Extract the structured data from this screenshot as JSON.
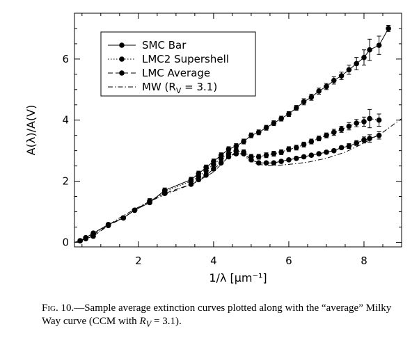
{
  "chart_data": {
    "type": "line",
    "xlabel": "1/λ [μm⁻¹]",
    "ylabel": "A(λ)/A(V)",
    "xlim": [
      0.3,
      9.0
    ],
    "ylim": [
      -0.15,
      7.5
    ],
    "xticks": [
      2,
      4,
      6,
      8
    ],
    "yticks": [
      0,
      2,
      4,
      6
    ],
    "grid": false,
    "legend_position": "top-left",
    "series": [
      {
        "name": "SMC Bar",
        "style": "solid",
        "marker": "circle",
        "x": [
          0.45,
          0.6,
          0.8,
          1.2,
          1.6,
          1.9,
          2.3,
          2.7,
          3.4,
          3.6,
          3.8,
          4.0,
          4.2,
          4.4,
          4.6,
          4.8,
          5.0,
          5.2,
          5.4,
          5.6,
          5.8,
          6.0,
          6.2,
          6.4,
          6.6,
          6.8,
          7.0,
          7.2,
          7.4,
          7.6,
          7.8,
          8.0,
          8.15,
          8.4,
          8.65
        ],
        "y": [
          0.05,
          0.15,
          0.3,
          0.58,
          0.8,
          1.05,
          1.3,
          1.7,
          2.05,
          2.25,
          2.45,
          2.65,
          2.85,
          3.05,
          3.15,
          3.3,
          3.5,
          3.6,
          3.75,
          3.9,
          4.05,
          4.2,
          4.4,
          4.6,
          4.75,
          4.95,
          5.1,
          5.3,
          5.45,
          5.65,
          5.85,
          6.05,
          6.3,
          6.45,
          7.0
        ],
        "yerr": [
          0.05,
          0.05,
          0.05,
          0.05,
          0.05,
          0.05,
          0.05,
          0.08,
          0.08,
          0.08,
          0.08,
          0.08,
          0.08,
          0.08,
          0.08,
          0.08,
          0.08,
          0.08,
          0.08,
          0.08,
          0.08,
          0.08,
          0.08,
          0.1,
          0.1,
          0.1,
          0.1,
          0.12,
          0.12,
          0.15,
          0.2,
          0.25,
          0.35,
          0.3,
          0.1
        ]
      },
      {
        "name": "LMC2 Supershell",
        "style": "dotted",
        "marker": "circle",
        "x": [
          0.45,
          0.6,
          0.8,
          1.2,
          1.6,
          1.9,
          2.3,
          2.7,
          3.4,
          3.6,
          3.8,
          4.0,
          4.2,
          4.4,
          4.6,
          4.8,
          5.0,
          5.2,
          5.4,
          5.6,
          5.8,
          6.0,
          6.2,
          6.4,
          6.6,
          6.8,
          7.0,
          7.2,
          7.4,
          7.6,
          7.8,
          8.0,
          8.15,
          8.4
        ],
        "y": [
          0.05,
          0.15,
          0.28,
          0.58,
          0.8,
          1.05,
          1.35,
          1.65,
          2.0,
          2.15,
          2.35,
          2.55,
          2.75,
          2.9,
          3.0,
          2.95,
          2.8,
          2.8,
          2.85,
          2.9,
          2.95,
          3.05,
          3.1,
          3.2,
          3.3,
          3.4,
          3.5,
          3.6,
          3.7,
          3.8,
          3.9,
          3.95,
          4.05,
          4.0
        ],
        "yerr": [
          0.05,
          0.05,
          0.05,
          0.05,
          0.05,
          0.05,
          0.08,
          0.08,
          0.08,
          0.08,
          0.08,
          0.08,
          0.08,
          0.08,
          0.08,
          0.08,
          0.08,
          0.08,
          0.08,
          0.08,
          0.08,
          0.08,
          0.08,
          0.08,
          0.08,
          0.08,
          0.08,
          0.1,
          0.1,
          0.12,
          0.12,
          0.15,
          0.3,
          0.2
        ]
      },
      {
        "name": "LMC Average",
        "style": "dashed",
        "marker": "circle",
        "x": [
          0.45,
          0.6,
          0.8,
          1.2,
          1.6,
          1.9,
          2.3,
          2.7,
          3.4,
          3.6,
          3.8,
          4.0,
          4.2,
          4.4,
          4.6,
          4.8,
          5.0,
          5.2,
          5.4,
          5.6,
          5.8,
          6.0,
          6.2,
          6.4,
          6.6,
          6.8,
          7.0,
          7.2,
          7.4,
          7.6,
          7.8,
          8.0,
          8.15,
          8.4
        ],
        "y": [
          0.05,
          0.12,
          0.2,
          0.55,
          0.8,
          1.05,
          1.35,
          1.6,
          1.9,
          2.05,
          2.2,
          2.4,
          2.6,
          2.8,
          2.9,
          2.9,
          2.7,
          2.6,
          2.6,
          2.6,
          2.65,
          2.7,
          2.75,
          2.8,
          2.85,
          2.9,
          2.95,
          3.0,
          3.1,
          3.15,
          3.25,
          3.35,
          3.4,
          3.5
        ],
        "yerr": [
          0.05,
          0.05,
          0.05,
          0.05,
          0.05,
          0.05,
          0.05,
          0.05,
          0.05,
          0.05,
          0.05,
          0.05,
          0.05,
          0.05,
          0.05,
          0.05,
          0.05,
          0.05,
          0.05,
          0.05,
          0.05,
          0.05,
          0.05,
          0.05,
          0.05,
          0.05,
          0.05,
          0.05,
          0.05,
          0.08,
          0.08,
          0.1,
          0.12,
          0.12
        ]
      },
      {
        "name": "MW (R_V = 3.1)",
        "style": "dashdot",
        "marker": "none",
        "x": [
          0.3,
          0.6,
          1.0,
          1.5,
          2.0,
          2.5,
          3.0,
          3.5,
          4.0,
          4.2,
          4.4,
          4.6,
          4.8,
          5.0,
          5.2,
          5.4,
          5.6,
          5.8,
          6.0,
          6.5,
          7.0,
          7.5,
          8.0,
          8.5,
          9.0
        ],
        "y": [
          0.0,
          0.1,
          0.4,
          0.8,
          1.15,
          1.45,
          1.7,
          1.95,
          2.3,
          2.55,
          2.8,
          2.95,
          2.85,
          2.65,
          2.55,
          2.52,
          2.52,
          2.53,
          2.55,
          2.62,
          2.75,
          2.95,
          3.25,
          3.6,
          4.05
        ]
      }
    ],
    "legend": [
      {
        "text": "SMC Bar",
        "style": "solid"
      },
      {
        "text": "LMC2 Supershell",
        "style": "dotted"
      },
      {
        "text": "LMC Average",
        "style": "dashed"
      },
      {
        "text": "MW (R",
        "sub": "V",
        "tail": " = 3.1)",
        "style": "dashdot"
      }
    ]
  },
  "caption": {
    "fig": "Fig. 10.",
    "text": "—Sample average extinction curves plotted along with the “average” Milky Way curve (CCM with ",
    "rv": "R",
    "rv_sub": "V",
    "tail": " = 3.1)."
  }
}
